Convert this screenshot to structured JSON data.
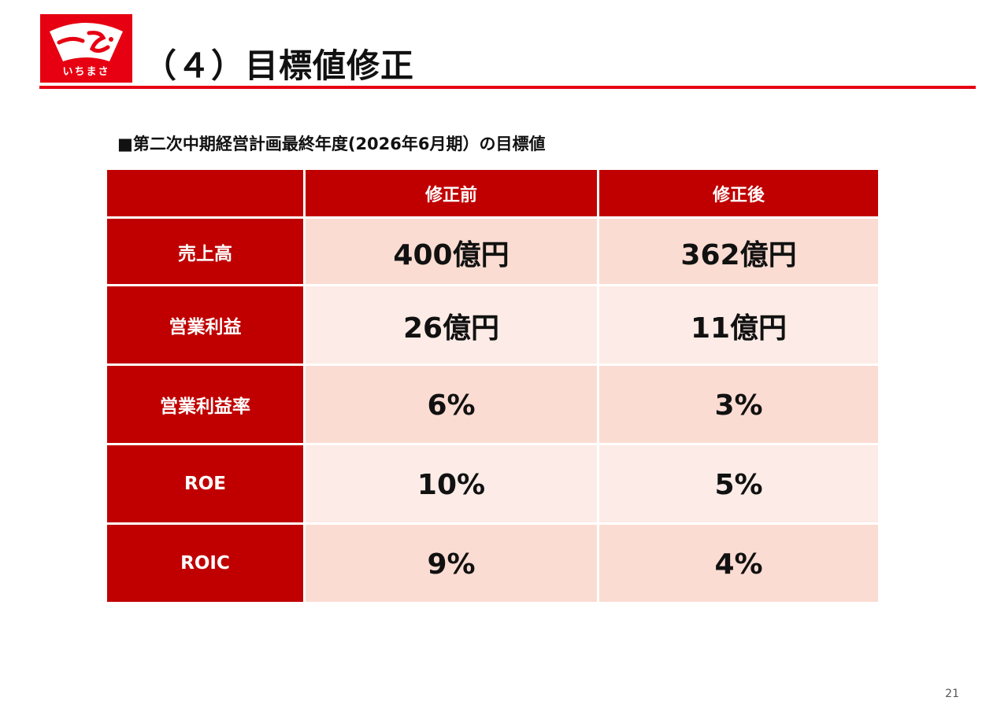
{
  "logo": {
    "caption": "いちまさ",
    "brand_color": "#e60012"
  },
  "header": {
    "title": "（４）目標値修正"
  },
  "section": {
    "subtitle": "■第二次中期経営計画最終年度(2026年6月期）の目標値"
  },
  "table": {
    "columns": [
      "",
      "修正前",
      "修正後"
    ],
    "rows": [
      {
        "label": "売上高",
        "before": "400億円",
        "after": "362億円"
      },
      {
        "label": "営業利益",
        "before": "26億円",
        "after": "11億円"
      },
      {
        "label": "営業利益率",
        "before": "6%",
        "after": "3%"
      },
      {
        "label": "ROE",
        "before": "10%",
        "after": "5%"
      },
      {
        "label": "ROIC",
        "before": "9%",
        "after": "4%"
      }
    ],
    "header_color": "#c00000",
    "row_colors": [
      "#fbdcd2",
      "#fcebe6"
    ]
  },
  "footer": {
    "page_number": "21"
  }
}
